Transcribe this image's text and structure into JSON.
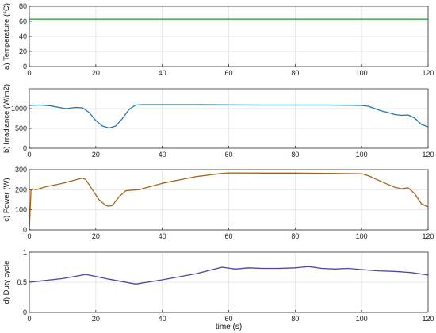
{
  "chart_data": [
    {
      "type": "line",
      "ylabel": "a) Temperature (°C)",
      "xlim": [
        0,
        120
      ],
      "ylim": [
        0,
        80
      ],
      "xticks": [
        0,
        20,
        40,
        60,
        80,
        100,
        120
      ],
      "yticks": [
        0,
        20,
        40,
        60,
        80
      ],
      "grid": true,
      "color": "#1a9a2e",
      "series": [
        {
          "x": [
            0,
            10,
            20,
            30,
            40,
            50,
            60,
            70,
            80,
            90,
            100,
            110,
            120
          ],
          "y": [
            63,
            63,
            63,
            63,
            63,
            63,
            63,
            63,
            63,
            63,
            63,
            63,
            63
          ]
        }
      ]
    },
    {
      "type": "line",
      "ylabel": "b) Irradiance (W/m2)",
      "xlim": [
        0,
        120
      ],
      "ylim": [
        0,
        1500
      ],
      "xticks": [
        0,
        20,
        40,
        60,
        80,
        100,
        120
      ],
      "yticks": [
        0,
        500,
        1000
      ],
      "grid": true,
      "color": "#1f77b4",
      "series": [
        {
          "x": [
            0,
            3,
            6,
            9,
            11,
            14,
            16,
            18,
            20,
            22,
            24,
            26,
            28,
            30,
            32,
            34,
            40,
            50,
            60,
            70,
            80,
            90,
            100,
            102,
            104,
            106,
            108,
            110,
            112,
            114,
            116,
            118,
            120
          ],
          "y": [
            1080,
            1090,
            1075,
            1030,
            1000,
            1030,
            1020,
            900,
            700,
            560,
            510,
            560,
            750,
            980,
            1090,
            1100,
            1100,
            1100,
            1095,
            1090,
            1090,
            1090,
            1080,
            1060,
            1000,
            940,
            900,
            850,
            830,
            840,
            760,
            600,
            540
          ]
        }
      ]
    },
    {
      "type": "line",
      "ylabel": "c) Power (W)",
      "xlim": [
        0,
        120
      ],
      "ylim": [
        0,
        300
      ],
      "xticks": [
        0,
        20,
        40,
        60,
        80,
        100,
        120
      ],
      "yticks": [
        0,
        100,
        200,
        300
      ],
      "grid": true,
      "color": "#a5641b",
      "series": [
        {
          "x": [
            0,
            0.5,
            1,
            2,
            5,
            10,
            14,
            16,
            17,
            19,
            21,
            23,
            24,
            25,
            27,
            29,
            31,
            33,
            40,
            50,
            58,
            60,
            70,
            80,
            90,
            100,
            102,
            106,
            110,
            112,
            114,
            116,
            118,
            120
          ],
          "y": [
            0,
            195,
            205,
            200,
            215,
            232,
            250,
            258,
            250,
            200,
            150,
            122,
            118,
            122,
            165,
            195,
            198,
            200,
            232,
            265,
            282,
            284,
            283,
            283,
            282,
            280,
            270,
            240,
            212,
            205,
            210,
            180,
            130,
            115
          ]
        }
      ]
    },
    {
      "type": "line",
      "ylabel": "d) Duty cycle",
      "xlabel": "time (s)",
      "xlim": [
        0,
        120
      ],
      "ylim": [
        0,
        1
      ],
      "xticks": [
        0,
        20,
        40,
        60,
        80,
        100,
        120
      ],
      "yticks": [
        0,
        0.5,
        1
      ],
      "grid": true,
      "color": "#5b3ea8",
      "series": [
        {
          "x": [
            0,
            5,
            10,
            17,
            24,
            32,
            40,
            50,
            58,
            62,
            66,
            70,
            75,
            80,
            84,
            88,
            92,
            96,
            100,
            105,
            110,
            115,
            120
          ],
          "y": [
            0.5,
            0.53,
            0.56,
            0.63,
            0.55,
            0.47,
            0.54,
            0.64,
            0.75,
            0.72,
            0.74,
            0.73,
            0.73,
            0.74,
            0.76,
            0.73,
            0.72,
            0.73,
            0.71,
            0.69,
            0.68,
            0.66,
            0.62
          ]
        }
      ]
    }
  ]
}
